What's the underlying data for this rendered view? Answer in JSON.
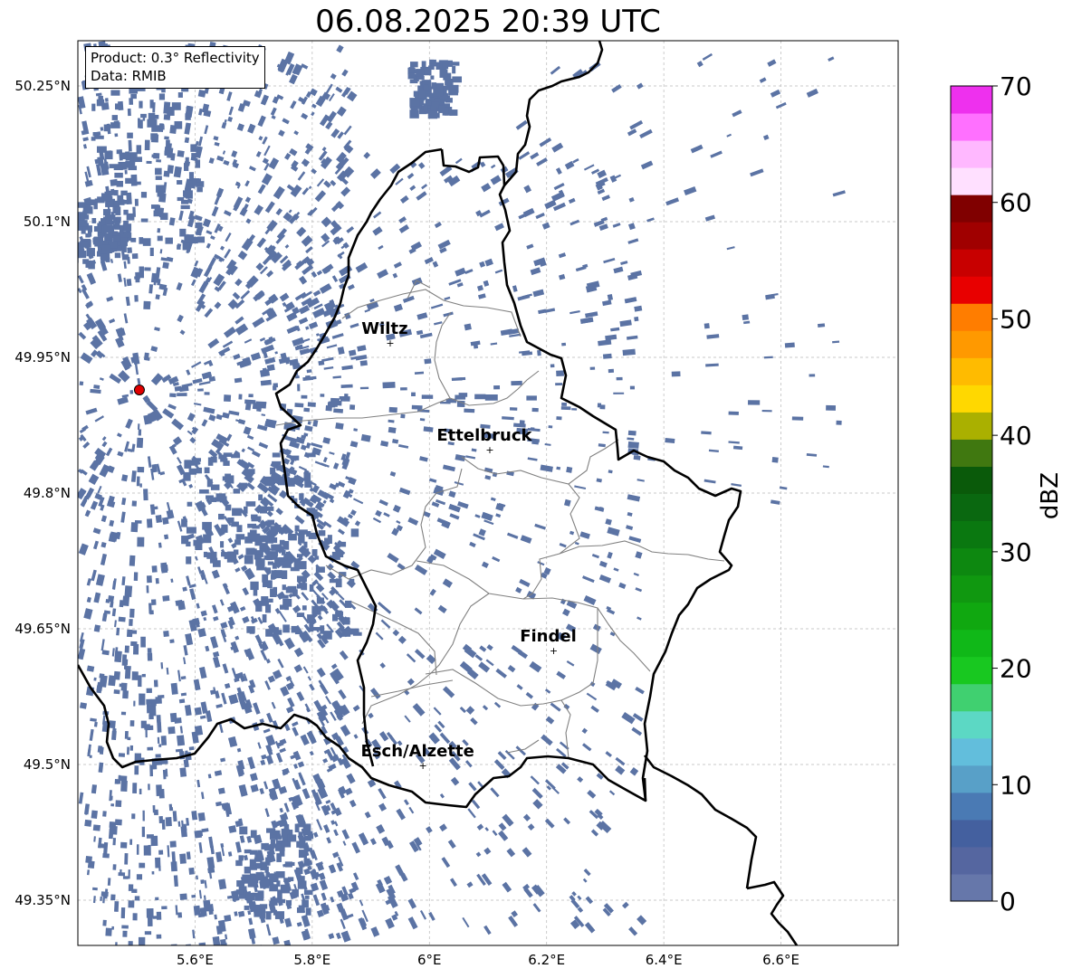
{
  "title": "06.08.2025 20:39 UTC",
  "info": {
    "product": "Product: 0.3° Reflectivity",
    "data": "Data: RMIB"
  },
  "map_extent": {
    "lon_min": 5.4,
    "lon_max": 6.8,
    "lat_min": 49.3,
    "lat_max": 50.3
  },
  "lat_ticks": [
    {
      "value": 50.25,
      "label": "50.25°N"
    },
    {
      "value": 50.1,
      "label": "50.1°N"
    },
    {
      "value": 49.95,
      "label": "49.95°N"
    },
    {
      "value": 49.8,
      "label": "49.8°N"
    },
    {
      "value": 49.65,
      "label": "49.65°N"
    },
    {
      "value": 49.5,
      "label": "49.5°N"
    },
    {
      "value": 49.35,
      "label": "49.35°N"
    }
  ],
  "lon_ticks": [
    {
      "value": 5.6,
      "label": "5.6°E"
    },
    {
      "value": 5.8,
      "label": "5.8°E"
    },
    {
      "value": 6.0,
      "label": "6°E"
    },
    {
      "value": 6.2,
      "label": "6.2°E"
    },
    {
      "value": 6.4,
      "label": "6.4°E"
    },
    {
      "value": 6.6,
      "label": "6.6°E"
    }
  ],
  "cities": [
    {
      "name": "Wiltz",
      "lon": 5.933,
      "lat": 49.966
    },
    {
      "name": "Ettelbruck",
      "lon": 6.103,
      "lat": 49.848
    },
    {
      "name": "Findel",
      "lon": 6.212,
      "lat": 49.626
    },
    {
      "name": "Esch/Alzette",
      "lon": 5.989,
      "lat": 49.499
    }
  ],
  "radar_site": {
    "lon": 5.505,
    "lat": 49.914,
    "color": "#e00000"
  },
  "colorbar": {
    "label": "dBZ",
    "min": 0,
    "max": 70,
    "step": 2.5,
    "colors": [
      "#6677aa",
      "#5566a0",
      "#44609f",
      "#4a7ab4",
      "#58a0c8",
      "#62bedc",
      "#5cd8c4",
      "#40d070",
      "#18c820",
      "#10b818",
      "#10a810",
      "#109810",
      "#0d8810",
      "#0a7810",
      "#0a6810",
      "#0a5a0a",
      "#407810",
      "#aab000",
      "#ffd800",
      "#ffbb00",
      "#ff9900",
      "#ff7d00",
      "#e80000",
      "#c80000",
      "#a00000",
      "#800000",
      "#ffe0ff",
      "#ffb8ff",
      "#ff70ff",
      "#ee30ee"
    ],
    "ticks": [
      {
        "value": 0,
        "label": "0"
      },
      {
        "value": 10,
        "label": "10"
      },
      {
        "value": 20,
        "label": "20"
      },
      {
        "value": 30,
        "label": "30"
      },
      {
        "value": 40,
        "label": "40"
      },
      {
        "value": 50,
        "label": "50"
      },
      {
        "value": 60,
        "label": "60"
      },
      {
        "value": 70,
        "label": "70"
      }
    ]
  },
  "echo_color": "#5b73a4",
  "border_color": "#000000",
  "canton_color": "#808080"
}
